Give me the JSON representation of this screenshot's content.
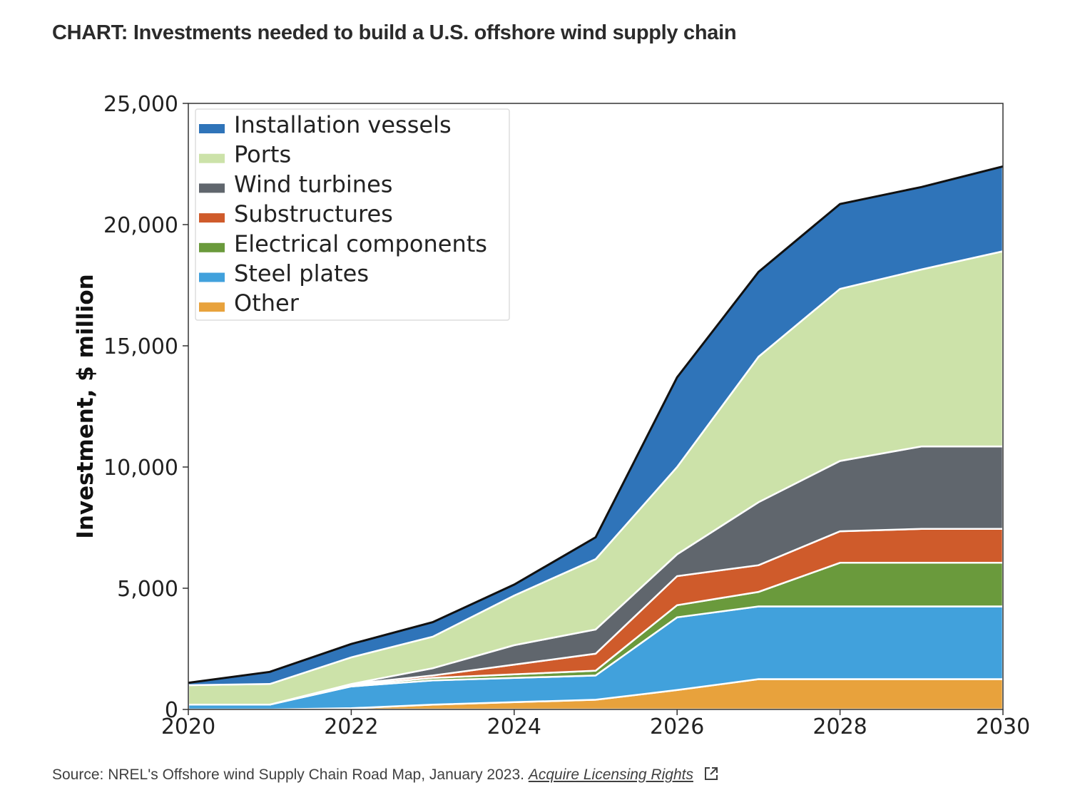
{
  "headline": "CHART: Investments needed to build a U.S. offshore wind supply chain",
  "footer": {
    "source": "Source: NREL's Offshore wind Supply Chain Road Map, January 2023.",
    "link": "Acquire Licensing Rights",
    "link_icon": "external-link-icon"
  },
  "chart_data": {
    "type": "area",
    "stacked": true,
    "x": [
      2020,
      2021,
      2022,
      2023,
      2024,
      2025,
      2026,
      2027,
      2028,
      2029,
      2030
    ],
    "xlim": [
      2020,
      2030
    ],
    "ylim": [
      0,
      25000
    ],
    "xticks": [
      {
        "value": 2020,
        "label": "2020"
      },
      {
        "value": 2022,
        "label": "2022"
      },
      {
        "value": 2024,
        "label": "2024"
      },
      {
        "value": 2026,
        "label": "2026"
      },
      {
        "value": 2028,
        "label": "2028"
      },
      {
        "value": 2030,
        "label": "2030"
      }
    ],
    "yticks": [
      {
        "value": 0,
        "label": "0"
      },
      {
        "value": 5000,
        "label": "5,000"
      },
      {
        "value": 10000,
        "label": "10,000"
      },
      {
        "value": 15000,
        "label": "15,000"
      },
      {
        "value": 20000,
        "label": "20,000"
      },
      {
        "value": 25000,
        "label": "25,000"
      }
    ],
    "ylabel": "Investment, $ million",
    "xlabel": "",
    "legend_position": "top-left",
    "series": [
      {
        "name": "Other",
        "color": "#e8a23c",
        "values": [
          0,
          0,
          50,
          200,
          300,
          400,
          800,
          1250,
          1250,
          1250,
          1250
        ]
      },
      {
        "name": "Steel plates",
        "color": "#41a1dc",
        "values": [
          200,
          200,
          900,
          1000,
          1000,
          1000,
          3000,
          3000,
          3000,
          3000,
          3000
        ]
      },
      {
        "name": "Electrical components",
        "color": "#6a9a3c",
        "values": [
          0,
          0,
          50,
          100,
          150,
          200,
          500,
          600,
          1800,
          1800,
          1800
        ]
      },
      {
        "name": "Substructures",
        "color": "#cf5b2b",
        "values": [
          0,
          0,
          50,
          100,
          400,
          700,
          1200,
          1100,
          1300,
          1400,
          1400
        ]
      },
      {
        "name": "Wind turbines",
        "color": "#60666d",
        "values": [
          0,
          0,
          0,
          300,
          800,
          1000,
          900,
          2600,
          2900,
          3400,
          3400
        ]
      },
      {
        "name": "Ports",
        "color": "#cce2a9",
        "values": [
          800,
          850,
          1100,
          1300,
          2050,
          2900,
          3600,
          6000,
          7100,
          7300,
          8050
        ]
      },
      {
        "name": "Installation vessels",
        "color": "#2f74b9",
        "values": [
          100,
          500,
          550,
          600,
          450,
          900,
          3700,
          3500,
          3500,
          3400,
          3500
        ]
      }
    ],
    "legend_order": [
      "Installation vessels",
      "Ports",
      "Wind turbines",
      "Substructures",
      "Electrical components",
      "Steel plates",
      "Other"
    ]
  }
}
